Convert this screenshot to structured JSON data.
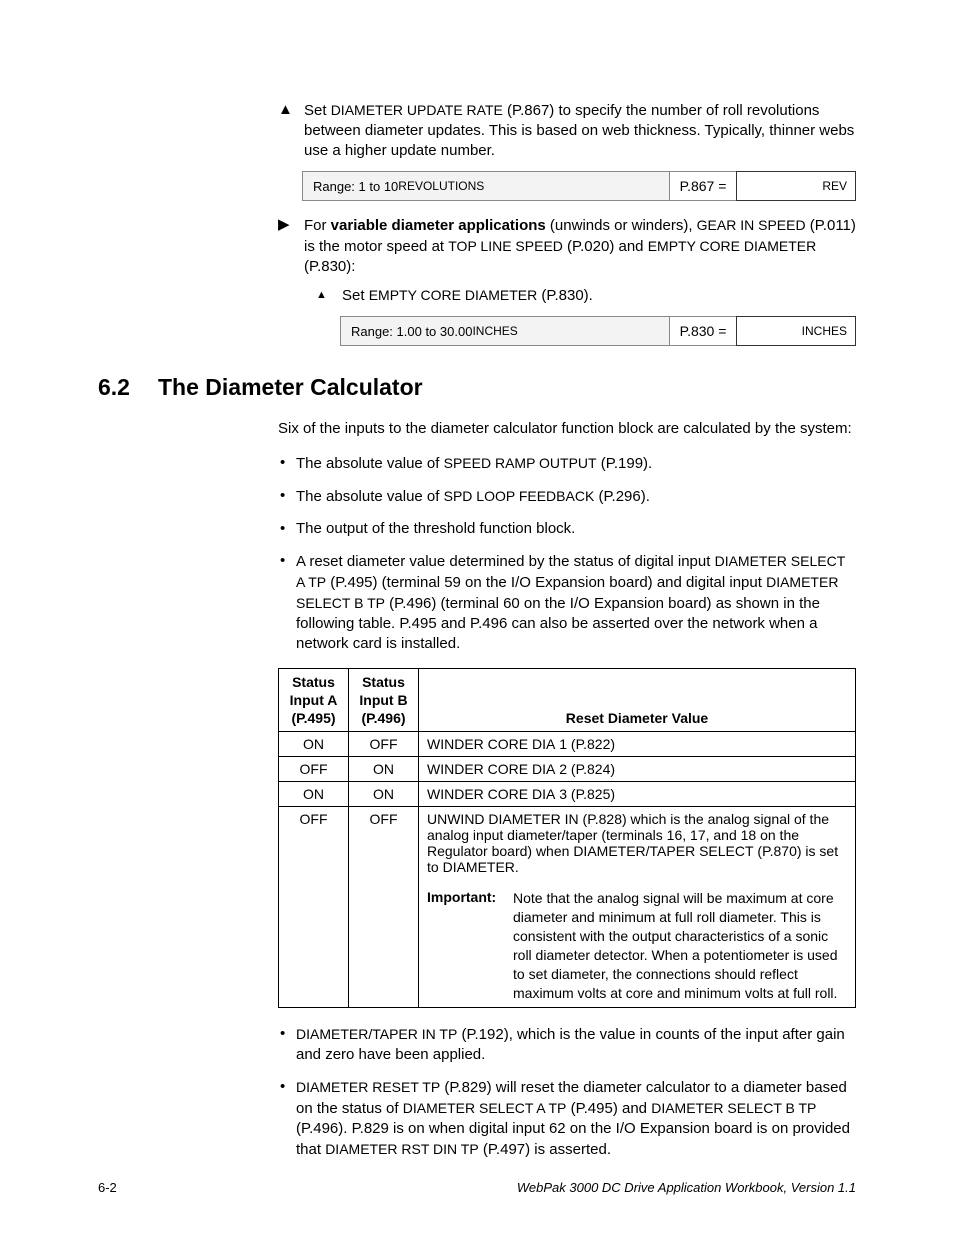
{
  "top_item": {
    "text_parts": [
      "Set ",
      "DIAMETER UPDATE RATE",
      " (P.867) to specify the number of roll revolutions between diameter updates. This is based on web thickness. Typically, thinner webs use a higher update number."
    ],
    "range_label": "Range: 1 to 10 ",
    "range_unit": "REVOLUTIONS",
    "param": "P.867 =",
    "unit": "REV"
  },
  "mid_item": {
    "text_prefix": "For ",
    "text_bold": "variable diameter applications",
    "text_rest_parts": [
      " (unwinds or winders), ",
      "GEAR IN SPEED",
      " (P.011) is the motor speed at ",
      "TOP LINE SPEED",
      " (P.020) and ",
      "EMPTY CORE DIAMETER",
      " (P.830):"
    ],
    "sub_parts": [
      "Set ",
      "EMPTY CORE DIAMETER",
      " (P.830)."
    ],
    "range_label": "Range: 1.00 to 30.00 ",
    "range_unit": "INCHES",
    "param": "P.830 =",
    "unit": "INCHES"
  },
  "section": {
    "num": "6.2",
    "title": "The Diameter Calculator"
  },
  "intro": "Six of the inputs to the diameter calculator function block are calculated by the system:",
  "bullets_a": [
    {
      "parts": [
        "The absolute value of ",
        "SPEED RAMP OUTPUT",
        " (P.199)."
      ]
    },
    {
      "parts": [
        "The absolute value of ",
        "SPD LOOP FEEDBACK",
        " (P.296)."
      ]
    },
    {
      "parts": [
        "The output of the threshold function block."
      ]
    },
    {
      "parts": [
        "A reset diameter value determined by the status of digital input ",
        "DIAMETER SELECT A TP",
        " (P.495) (terminal 59 on the I/O Expansion board) and digital input ",
        "DIAMETER SELECT B TP",
        " (P.496) (terminal 60 on the I/O Expansion board) as shown in the following table. P.495 and P.496 can also be asserted over the network when a network card is installed."
      ]
    }
  ],
  "table": {
    "headers": {
      "a": "Status Input A (P.495)",
      "b": "Status Input B (P.496)",
      "c": "Reset Diameter Value"
    },
    "rows": [
      {
        "a": "ON",
        "b": "OFF",
        "c_parts": [
          "WINDER CORE DIA",
          " 1 (P.822)"
        ]
      },
      {
        "a": "OFF",
        "b": "ON",
        "c_parts": [
          "WINDER CORE DIA",
          " 2 (P.824)"
        ]
      },
      {
        "a": "ON",
        "b": "ON",
        "c_parts": [
          "WINDER CORE DIA",
          " 3 (P.825)"
        ]
      }
    ],
    "row4": {
      "a": "OFF",
      "b": "OFF",
      "c_parts": [
        "UNWIND DIAMETER IN",
        " (P.828) which is the analog signal of the analog input diameter/taper (terminals 16, 17, and 18 on the Regulator board) when ",
        "DIAMETER/TAPER SELECT",
        " (P.870) is set to ",
        "DIAMETER",
        "."
      ],
      "important_label": "Important:",
      "important_text": "Note that the analog signal will be maximum at core diameter and minimum at full roll diameter. This is consistent with the output characteristics of a sonic roll diameter detector. When a potentiometer is used to set diameter, the connections should reflect maximum volts at core and minimum volts at full roll."
    }
  },
  "bullets_b": [
    {
      "parts": [
        "DIAMETER/TAPER IN TP",
        " (P.192), which is the value in counts of the input after gain and zero have been applied."
      ]
    },
    {
      "parts": [
        "DIAMETER RESET TP",
        " (P.829) will reset the diameter calculator to a diameter based on the status of ",
        "DIAMETER SELECT A TP",
        " (P.495) and ",
        "DIAMETER SELECT B TP",
        " (P.496). P.829 is on when digital input 62 on the I/O Expansion board is on provided that ",
        "DIAMETER RST DIN TP",
        " (P.497) is asserted."
      ]
    }
  ],
  "footer": {
    "left": "6-2",
    "right": "WebPak 3000 DC Drive Application Workbook, Version 1.1"
  }
}
